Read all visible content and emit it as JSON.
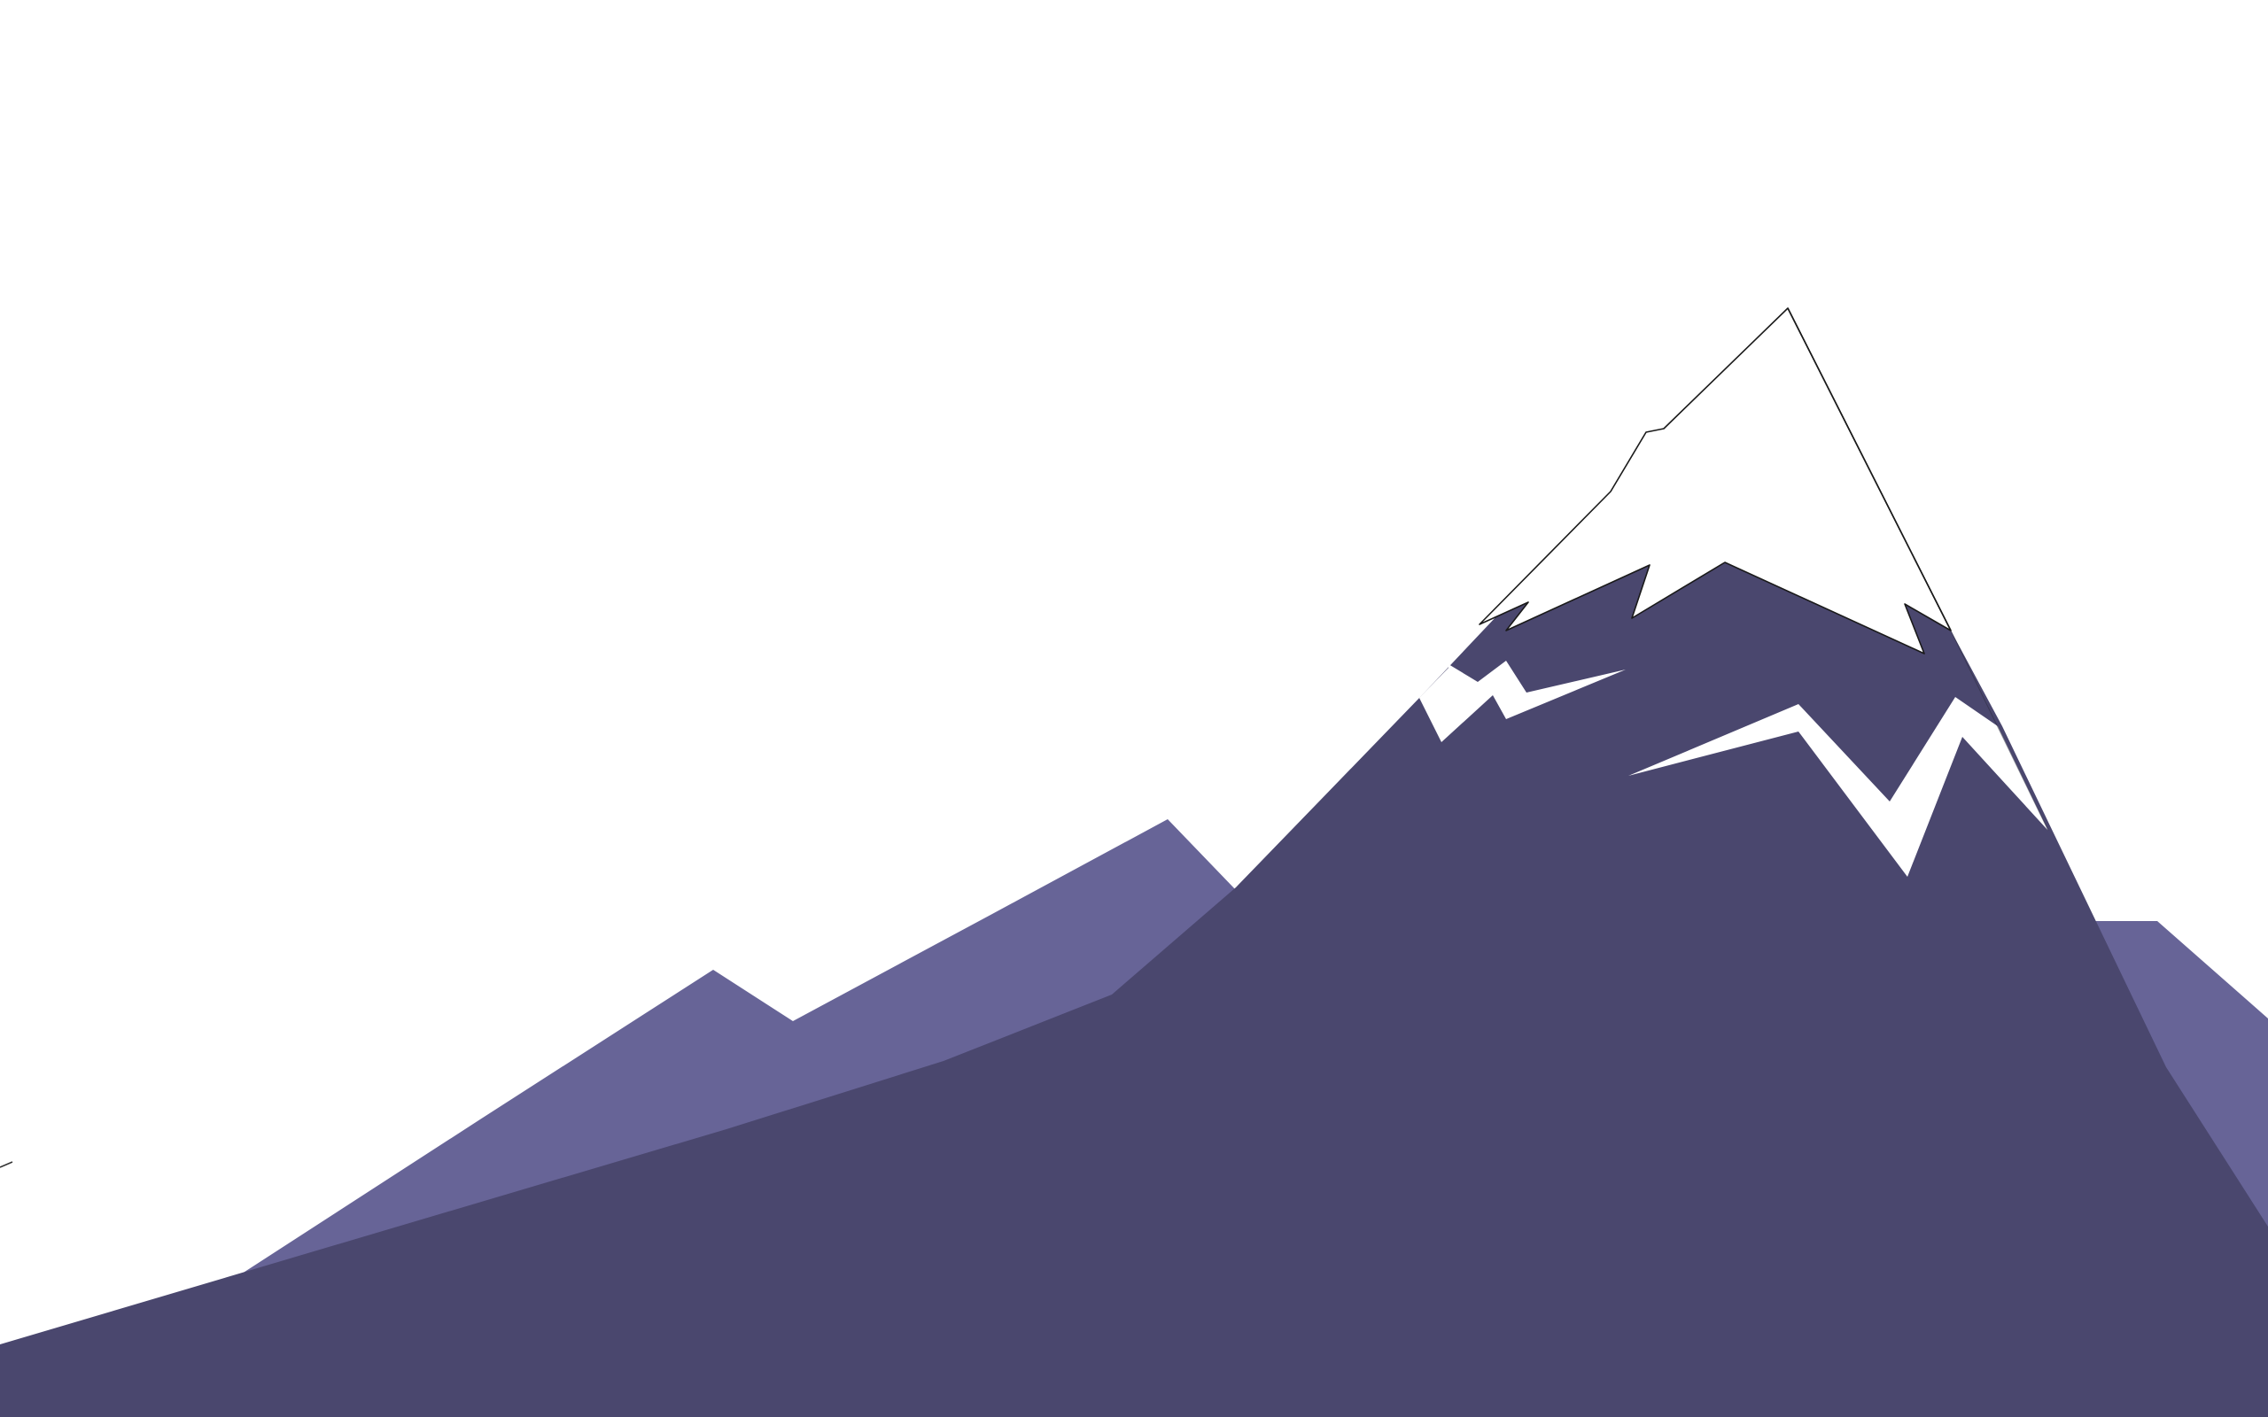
{
  "scene": {
    "background_color": "#ffffff",
    "colors": {
      "back_range": "#676497",
      "front_range": "#4a476e",
      "snow": "#ffffff",
      "outline": "#1a1a1a"
    },
    "elements": {
      "back_range": "back-mountain-range",
      "front_range": "front-mountain-range",
      "snow_cap": "snow-cap",
      "snow_streak_1": "snow-streak",
      "snow_streak_2": "snow-streak"
    }
  }
}
